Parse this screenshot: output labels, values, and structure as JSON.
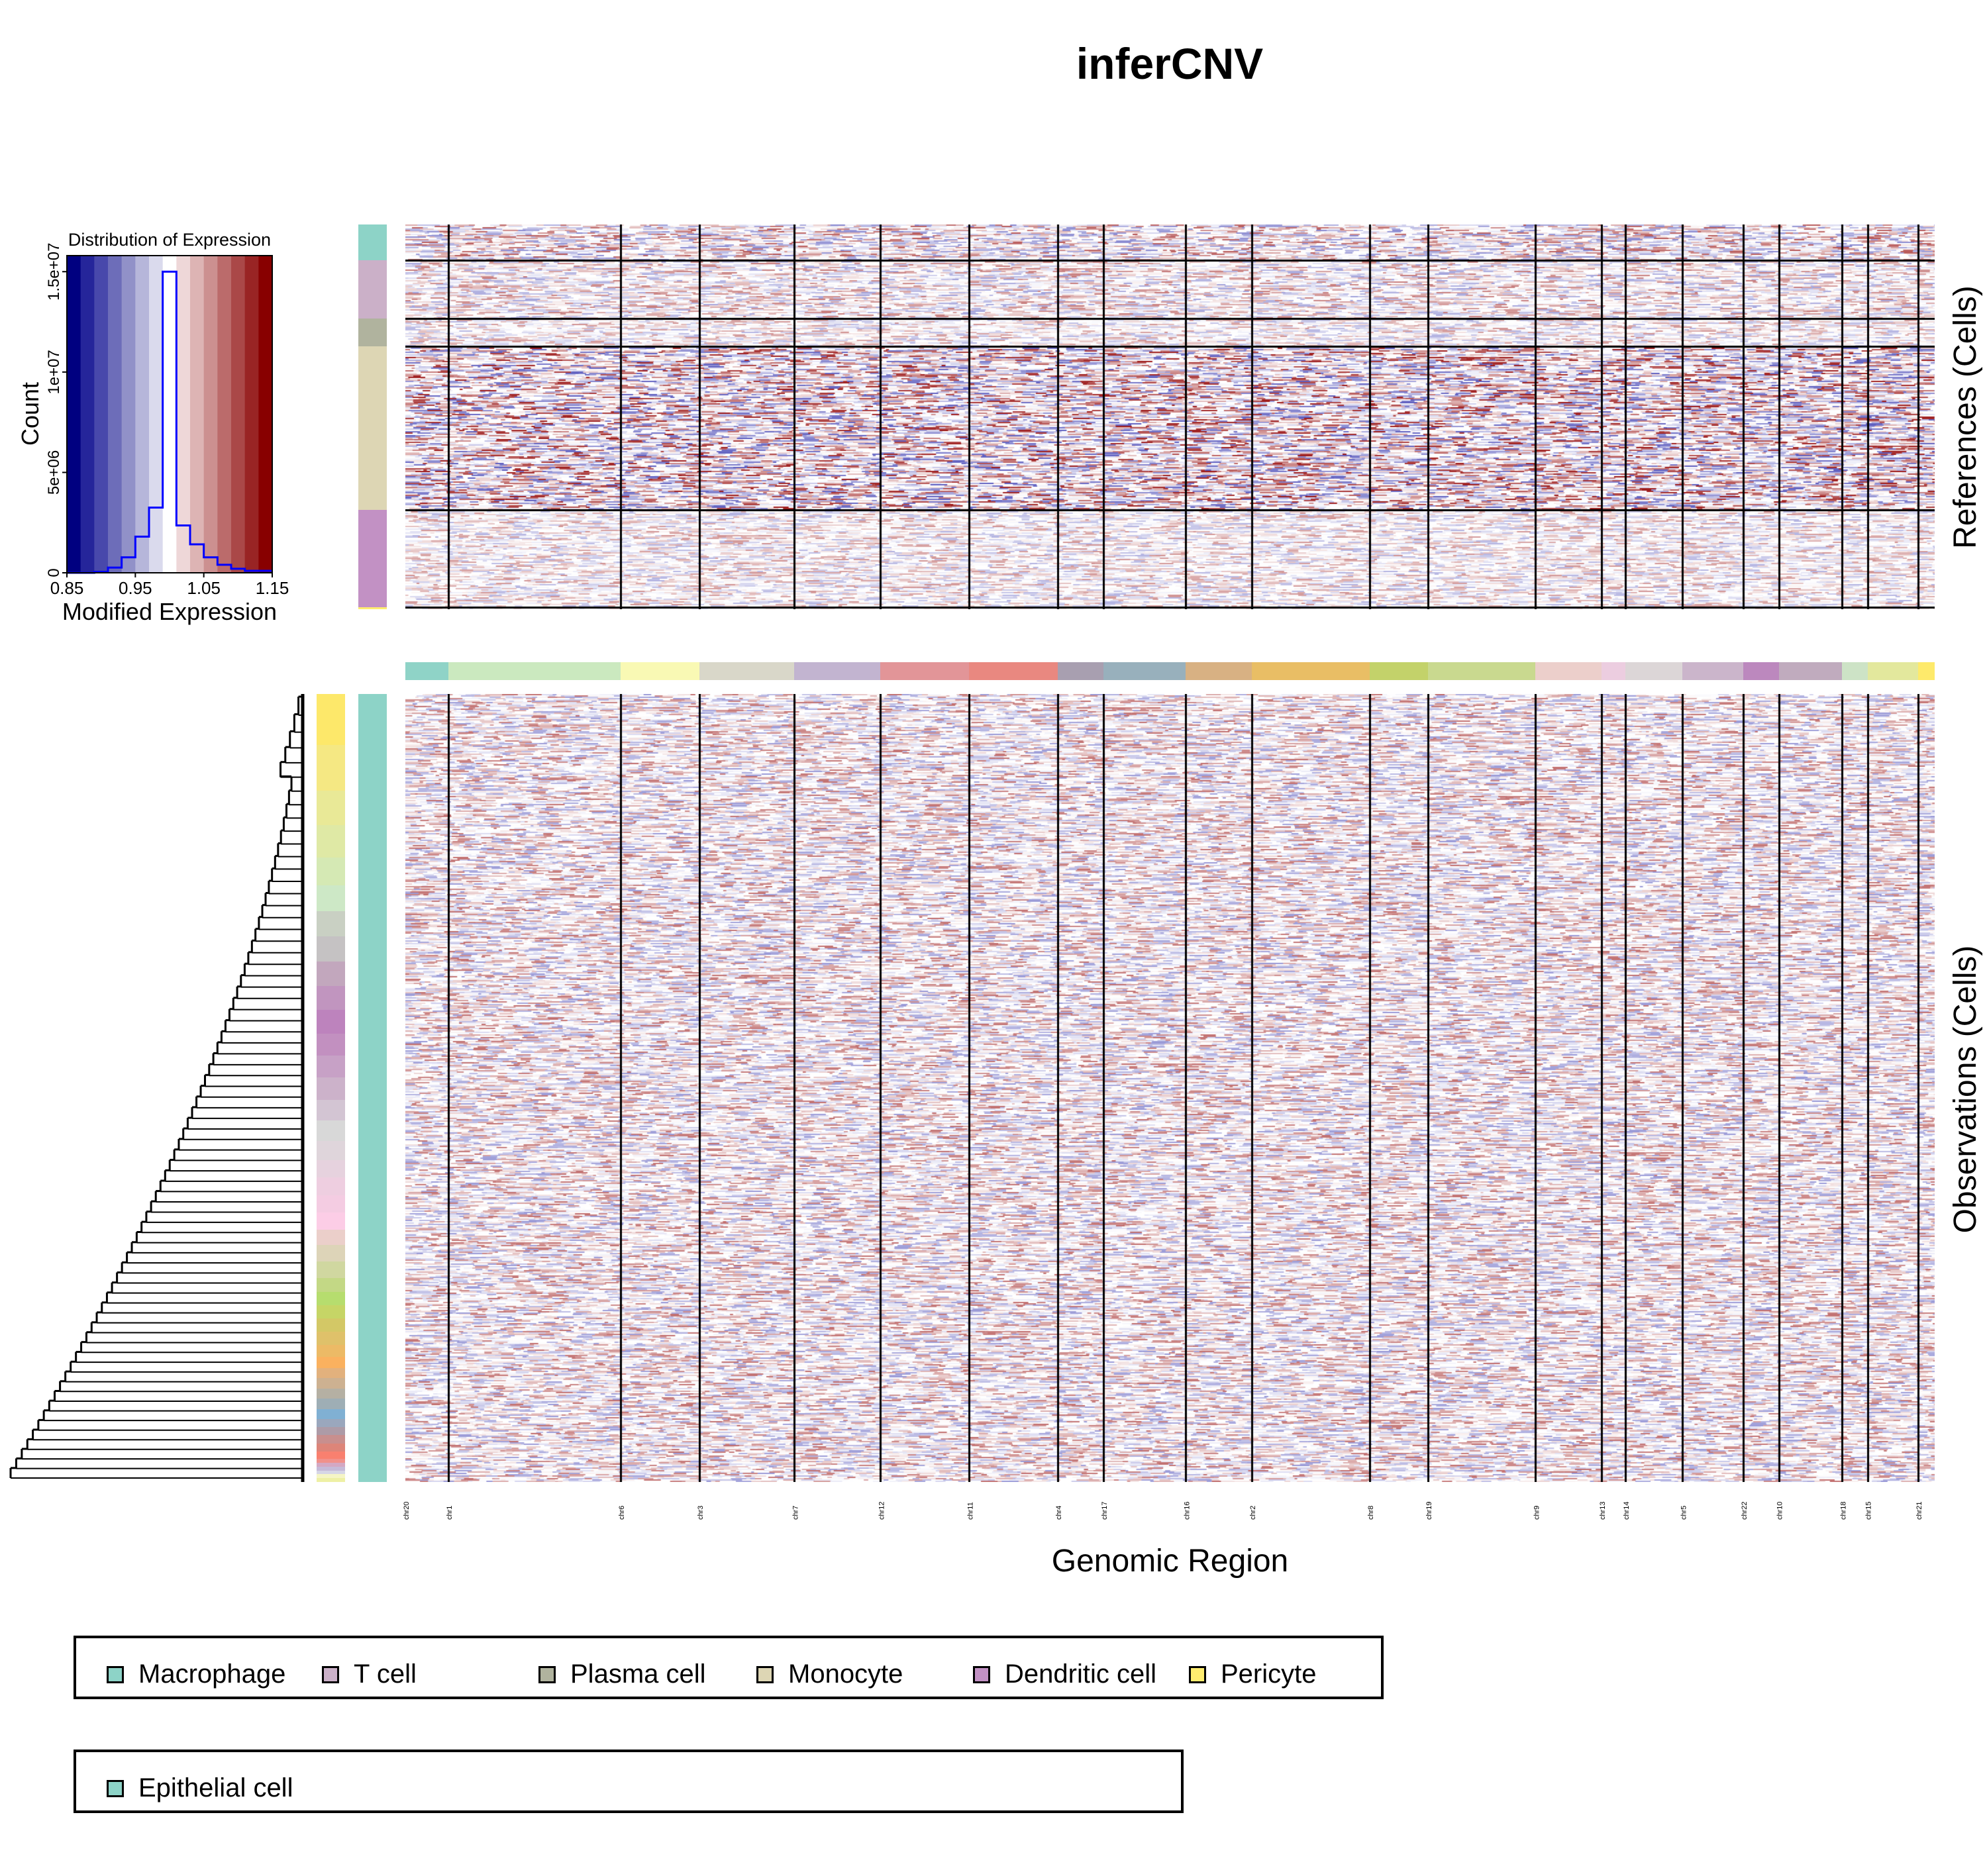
{
  "title": "inferCNV",
  "xlabel": "Genomic Region",
  "references_label": "References (Cells)",
  "observations_label": "Observations (Cells)",
  "chart_data": [
    {
      "type": "bar",
      "title": "Distribution of Expression",
      "xlabel": "Modified Expression",
      "ylabel": "Count",
      "xlim": [
        0.85,
        1.15
      ],
      "ylim": [
        0,
        15800000
      ],
      "x_ticks": [
        "0.85",
        "0.95",
        "1.05",
        "1.15"
      ],
      "y_ticks": [
        "0",
        "5e+06",
        "1e+07",
        "1.5e+07"
      ],
      "bin_edges": [
        0.85,
        0.87,
        0.89,
        0.91,
        0.93,
        0.95,
        0.97,
        0.99,
        1.01,
        1.03,
        1.05,
        1.07,
        1.09,
        1.11,
        1.13,
        1.15
      ],
      "values": [
        0,
        0,
        50000,
        260000,
        770000,
        1800000,
        3250000,
        15000000,
        2360000,
        1420000,
        770000,
        400000,
        200000,
        100000,
        100000
      ],
      "line_color": "#0000ff",
      "band_colors": [
        "#000080",
        "#25259a",
        "#4848ab",
        "#6d6db9",
        "#9191c8",
        "#b6b6da",
        "#dadaed",
        "#ffffff",
        "#eed7d8",
        "#ddb4b4",
        "#cc9090",
        "#bb6b6b",
        "#aa4848",
        "#992424",
        "#880000"
      ]
    },
    {
      "type": "heatmap",
      "color_low": "#000080",
      "color_mid": "#ffffff",
      "color_high": "#880000",
      "chromosomes": [
        {
          "name": "chr20",
          "color": "#8fd3c7"
        },
        {
          "name": "chr1",
          "color": "#cbe9bf"
        },
        {
          "name": "chr6",
          "color": "#f9f9b4"
        },
        {
          "name": "chr3",
          "color": "#d9d7c9"
        },
        {
          "name": "chr7",
          "color": "#c2b4d0"
        },
        {
          "name": "chr12",
          "color": "#e29598"
        },
        {
          "name": "chr11",
          "color": "#e98880"
        },
        {
          "name": "chr4",
          "color": "#a89fb0"
        },
        {
          "name": "chr17",
          "color": "#98b0bc"
        },
        {
          "name": "chr16",
          "color": "#d8b183"
        },
        {
          "name": "chr2",
          "color": "#e9be65"
        },
        {
          "name": "chr8",
          "color": "#c3d26a"
        },
        {
          "name": "chr19",
          "color": "#c9d98f"
        },
        {
          "name": "chr9",
          "color": "#eccfcb"
        },
        {
          "name": "chr13",
          "color": "#eccde0"
        },
        {
          "name": "chr14",
          "color": "#dcd6d7"
        },
        {
          "name": "chr5",
          "color": "#cbb5cb"
        },
        {
          "name": "chr22",
          "color": "#bc88be"
        },
        {
          "name": "chr10",
          "color": "#c0abbe"
        },
        {
          "name": "chr18",
          "color": "#cde3c6"
        },
        {
          "name": "chr15",
          "color": "#e3e89d"
        },
        {
          "name": "chr21",
          "color": "#feea6b"
        }
      ],
      "reference_groups": [
        {
          "name": "Macrophage",
          "color": "#8dd3c7"
        },
        {
          "name": "T cell",
          "color": "#cbb0c8"
        },
        {
          "name": "Plasma cell",
          "color": "#b0b39e"
        },
        {
          "name": "Monocyte",
          "color": "#ddd6b4"
        },
        {
          "name": "Dendritic cell",
          "color": "#c291c4"
        },
        {
          "name": "Pericyte",
          "color": "#ffed6f"
        }
      ],
      "observation_groups": [
        {
          "name": "Epithelial cell",
          "color": "#8dd3c7"
        }
      ],
      "subcluster_colors": [
        "#fde86a",
        "#f5e883",
        "#e9e997",
        "#dfe9a5",
        "#d5e9b4",
        "#cde8c6",
        "#c9d0c3",
        "#c5c2c3",
        "#c2a7bd",
        "#c195bf",
        "#bd83bd",
        "#c290c0",
        "#c7a1c6",
        "#ccb2ca",
        "#d3c5d3",
        "#d8d8d8",
        "#dfd5db",
        "#e6d2de",
        "#eecee0",
        "#f4cce2",
        "#fccde6",
        "#ebcfca",
        "#ddd4b8",
        "#d0d7a0",
        "#c3d885",
        "#b6dd6e",
        "#c6d566",
        "#d3c866",
        "#dfc16a",
        "#ecba66",
        "#fab15f",
        "#e2b17d",
        "#cdb191",
        "#b5b0a3",
        "#9eaeb5",
        "#80b0d3",
        "#9aa7bd",
        "#ad9ba7",
        "#c88f8e",
        "#dd8579",
        "#f9806f",
        "#f0918b",
        "#d4a8c3",
        "#c6bad8",
        "#d6d6e6",
        "#f5f5c6",
        "#eef0a5"
      ]
    }
  ],
  "legend": {
    "references": [
      "Macrophage",
      "T cell",
      "Plasma cell",
      "Monocyte",
      "Dendritic cell",
      "Pericyte"
    ],
    "observations": [
      "Epithelial cell"
    ]
  }
}
